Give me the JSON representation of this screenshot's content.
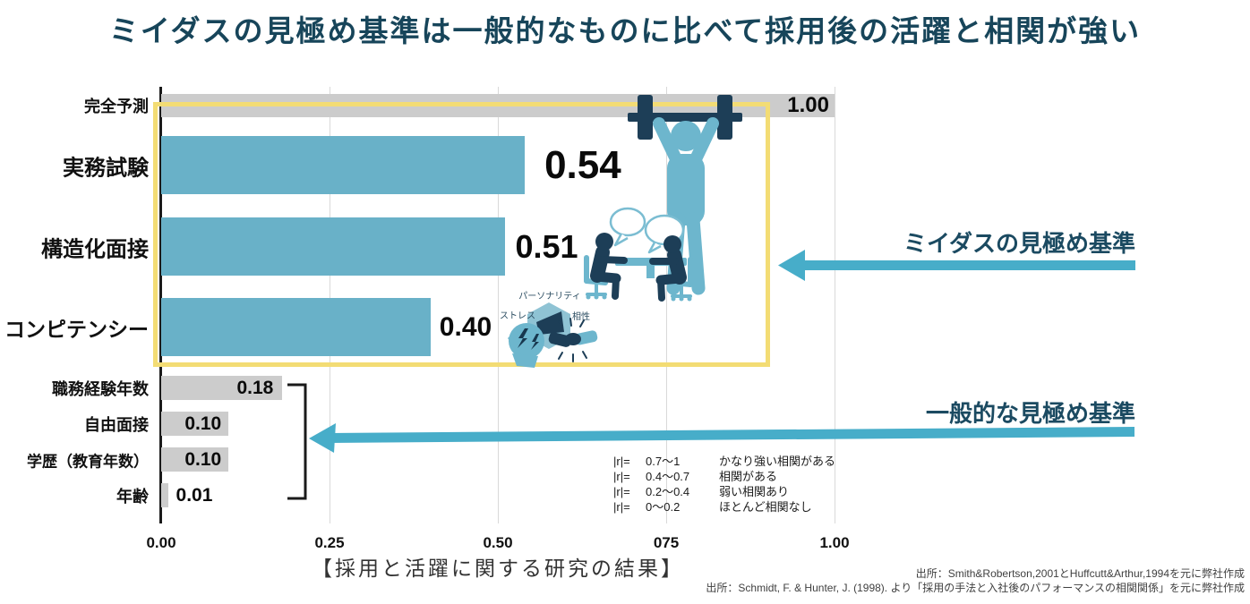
{
  "title": "ミイダスの見極め基準は一般的なものに比べて採用後の活躍と相関が強い",
  "chart_data": {
    "type": "bar",
    "orientation": "horizontal",
    "title": "ミイダスの見極め基準は一般的なものに比べて採用後の活躍と相関が強い",
    "xlim": [
      0,
      1
    ],
    "x_ticks": [
      "0.00",
      "0.25",
      "0.50",
      "075",
      "1.00"
    ],
    "grid": true,
    "rows": [
      {
        "label": "完全予測",
        "value": 1.0,
        "display": "1.00",
        "group": "perfect"
      },
      {
        "label": "実務試験",
        "value": 0.54,
        "display": "0.54",
        "group": "miidas"
      },
      {
        "label": "構造化面接",
        "value": 0.51,
        "display": "0.51",
        "group": "miidas"
      },
      {
        "label": "コンピテンシー",
        "value": 0.4,
        "display": "0.40",
        "group": "miidas"
      },
      {
        "label": "職務経験年数",
        "value": 0.18,
        "display": "0.18",
        "group": "general"
      },
      {
        "label": "自由面接",
        "value": 0.1,
        "display": "0.10",
        "group": "general"
      },
      {
        "label": "学歴（教育年数）",
        "value": 0.1,
        "display": "0.10",
        "group": "general"
      },
      {
        "label": "年齢",
        "value": 0.01,
        "display": "0.01",
        "group": "general"
      }
    ],
    "colors": {
      "miidas": "#69b1c8",
      "general": "#cccccc",
      "perfect": "#cccccc"
    }
  },
  "annotations": {
    "miidas": "ミイダスの見極め基準",
    "general": "一般的な見極め基準"
  },
  "legend": {
    "rows": [
      {
        "lhs": "|r|=",
        "range": "0.7〜1",
        "desc": "かなり強い相関がある"
      },
      {
        "lhs": "|r|=",
        "range": "0.4〜0.7",
        "desc": "相関がある"
      },
      {
        "lhs": "|r|=",
        "range": "0.2〜0.4",
        "desc": "弱い相関あり"
      },
      {
        "lhs": "|r|=",
        "range": "0〜0.2",
        "desc": "ほとんど相関なし"
      }
    ]
  },
  "caption": "【採用と活躍に関する研究の結果】",
  "sources": [
    "出所：Smith&Robertson,2001とHuffcutt&Arthur,1994を元に弊社作成",
    "出所：Schmidt, F. & Hunter, J. (1998). より「採用の手法と入社後のパフォーマンスの相関関係」を元に弊社作成"
  ],
  "icon_labels": {
    "personality": "パーソナリティ",
    "stress": "ストレス",
    "compatibility": "相性"
  },
  "ui_colors": {
    "title_text": "#17455a",
    "annotation_text": "#1b4a61",
    "accent_arrow": "#47adc9",
    "highlight_yellow": "#f3dc74",
    "icon_teal": "#6db6cd",
    "dark_navy": "#1d3e57"
  }
}
